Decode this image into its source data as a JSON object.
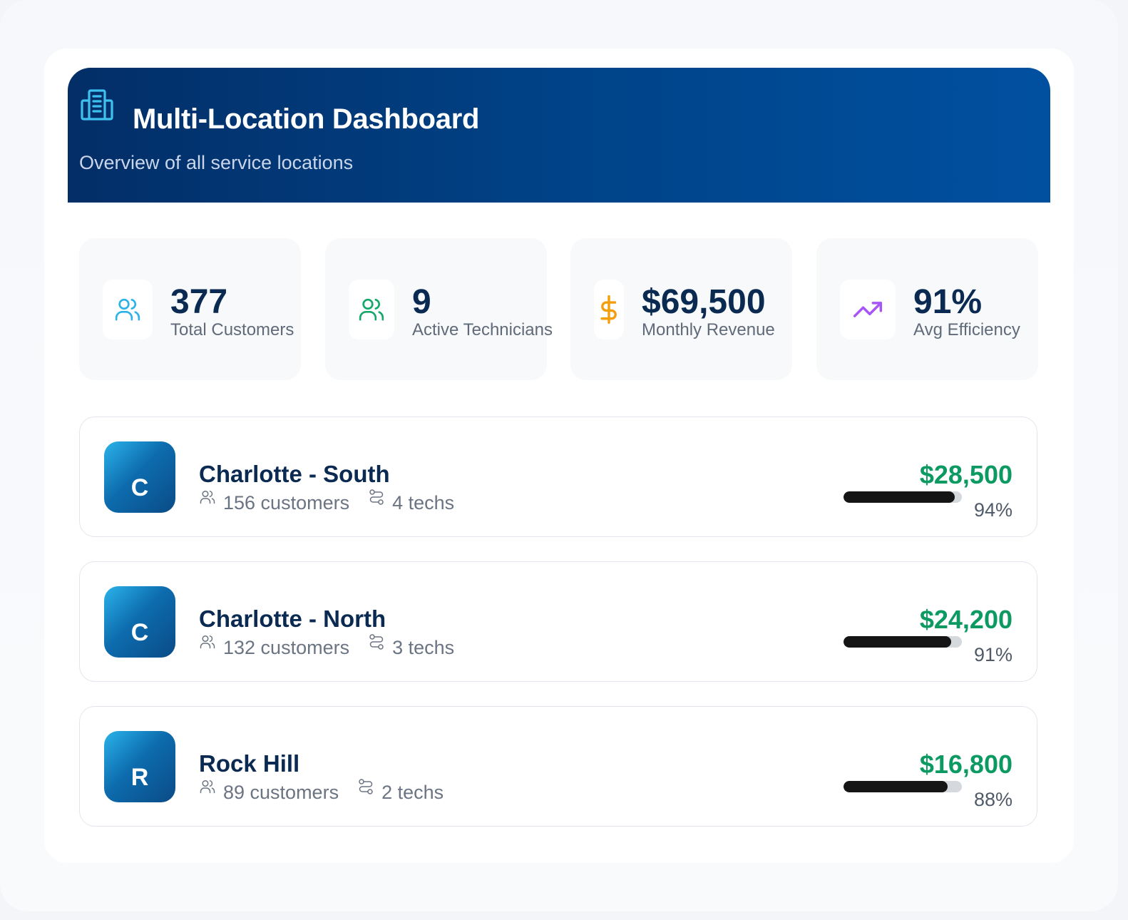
{
  "header": {
    "title": "Multi-Location Dashboard",
    "subtitle": "Overview of all service locations",
    "icon": "building-icon"
  },
  "stats": [
    {
      "value": "377",
      "label": "Total Customers",
      "icon": "users-icon",
      "color": "#2bb3e8"
    },
    {
      "value": "9",
      "label": "Active Technicians",
      "icon": "users-icon",
      "color": "#14a86a"
    },
    {
      "value": "$69,500",
      "label": "Monthly Revenue",
      "icon": "dollar-icon",
      "color": "#f59e0b"
    },
    {
      "value": "91%",
      "label": "Avg Efficiency",
      "icon": "trending-up-icon",
      "color": "#a855f7"
    }
  ],
  "locations": [
    {
      "initial": "C",
      "name": "Charlotte - South",
      "customers": "156 customers",
      "techs": "4 techs",
      "revenue": "$28,500",
      "efficiency": "94%",
      "efficiency_value": 0.94
    },
    {
      "initial": "C",
      "name": "Charlotte - North",
      "customers": "132 customers",
      "techs": "3 techs",
      "revenue": "$24,200",
      "efficiency": "91%",
      "efficiency_value": 0.91
    },
    {
      "initial": "R",
      "name": "Rock Hill",
      "customers": "89 customers",
      "techs": "2 techs",
      "revenue": "$16,800",
      "efficiency": "88%",
      "efficiency_value": 0.88
    }
  ],
  "colors": {
    "header_start": "#032e67",
    "header_end": "#0150a0",
    "revenue": "#0c9a62",
    "title_text": "#0b2a52"
  }
}
